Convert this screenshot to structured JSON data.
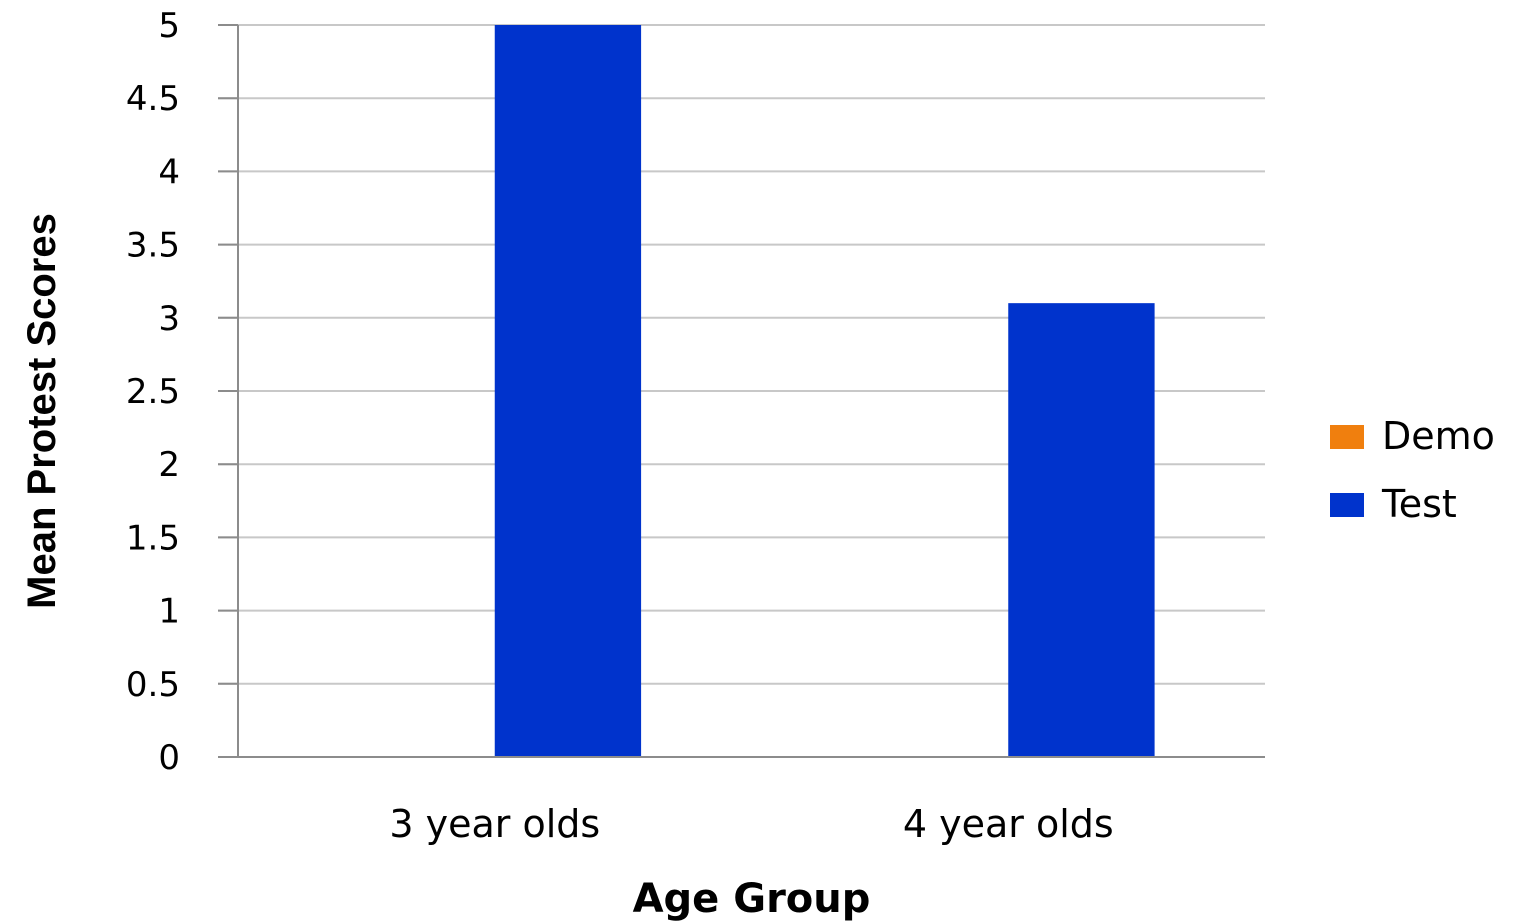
{
  "chart_data": {
    "type": "bar",
    "categories": [
      "3 year olds",
      "4 year olds"
    ],
    "series": [
      {
        "name": "Demo",
        "color": "#F07F0E",
        "values": [
          0,
          0
        ]
      },
      {
        "name": "Test",
        "color": "#0033CC",
        "values": [
          5,
          3.1
        ]
      }
    ],
    "xlabel": "Age Group",
    "ylabel": "Mean Protest Scores",
    "ylim": [
      0,
      5
    ],
    "yticks": [
      "0",
      "0.5",
      "1",
      "1.5",
      "2",
      "2.5",
      "3",
      "3.5",
      "4",
      "4.5",
      "5"
    ],
    "grid": true,
    "legend_position": "right"
  }
}
